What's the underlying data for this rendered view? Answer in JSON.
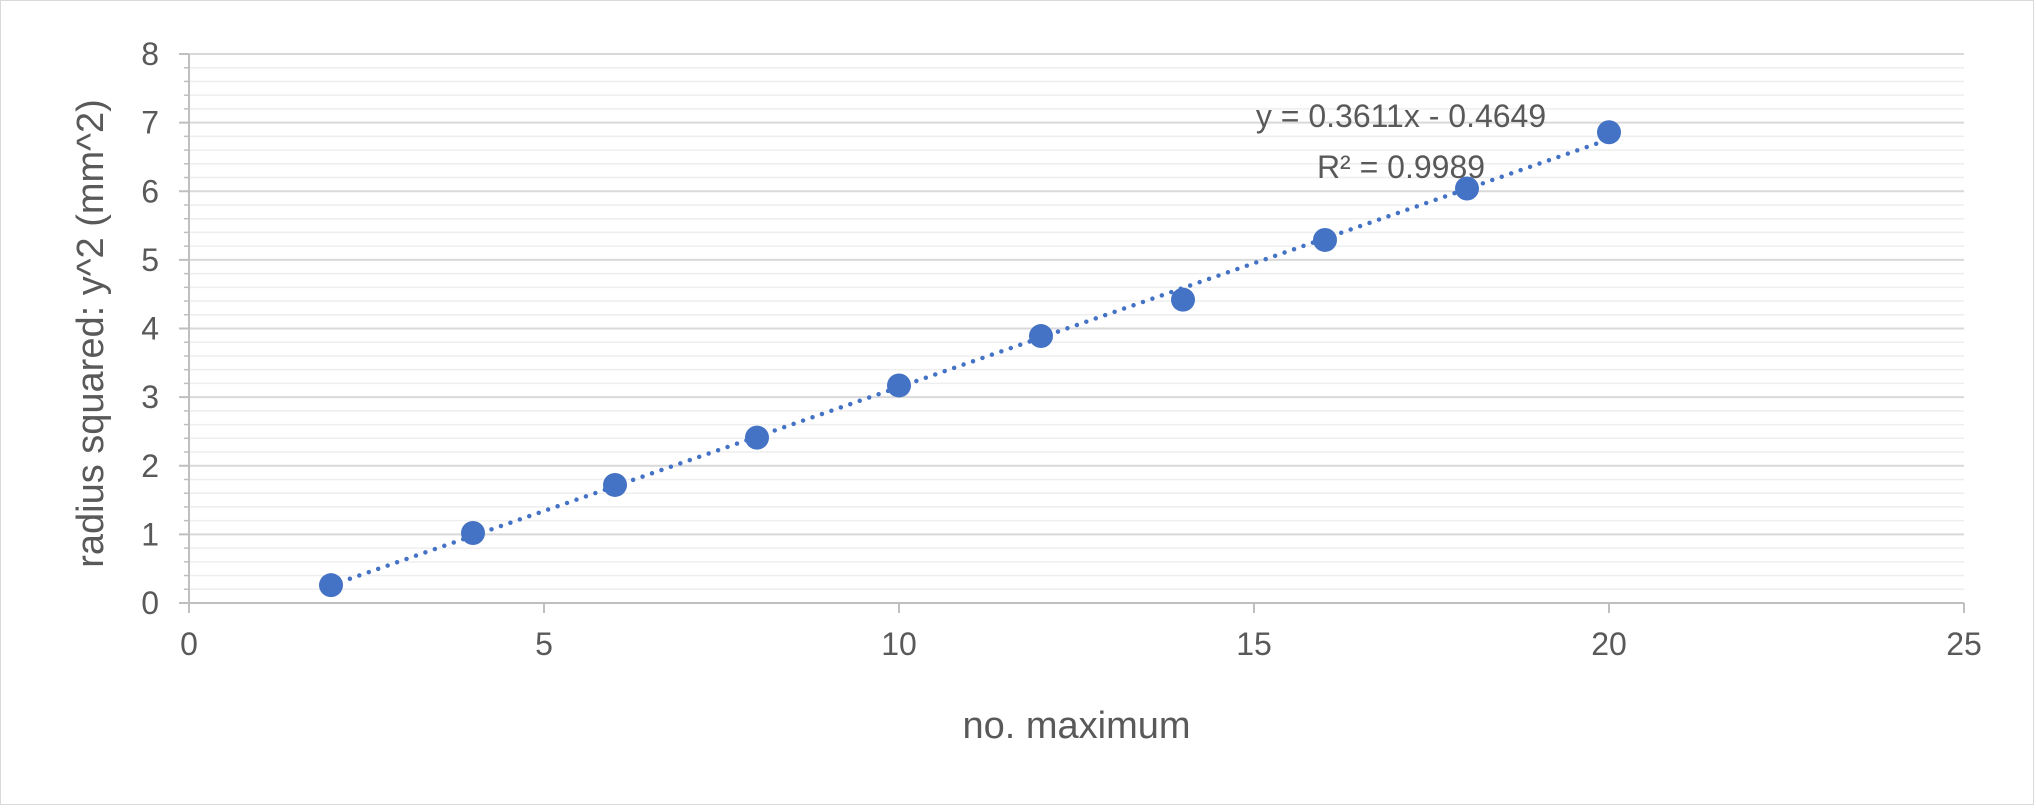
{
  "chart_data": {
    "type": "scatter",
    "title": "",
    "xlabel": "no. maximum",
    "ylabel": "radius squared: y^2 (mm^2)",
    "xlim": [
      0,
      25
    ],
    "ylim": [
      0,
      8
    ],
    "x_ticks": [
      0,
      5,
      10,
      15,
      20,
      25
    ],
    "y_ticks": [
      0,
      1,
      2,
      3,
      4,
      5,
      6,
      7,
      8
    ],
    "grid": {
      "major": true,
      "minor": true,
      "minor_step": 0.2
    },
    "legend": "none",
    "colors": {
      "marker": "#4472c4",
      "trendline": "#4472c4",
      "major_grid": "#d9d9d9",
      "minor_grid": "#eeeeee",
      "axis": "#bfbfbf"
    },
    "series": [
      {
        "x": [
          2,
          4,
          6,
          8,
          10,
          12,
          14,
          16,
          18,
          20
        ],
        "y": [
          0.26,
          1.02,
          1.72,
          2.41,
          3.17,
          3.89,
          4.42,
          5.29,
          6.04,
          6.86
        ]
      }
    ],
    "trendline": {
      "type": "linear",
      "slope": 0.3611,
      "intercept": -0.4649,
      "x_range": [
        2,
        20
      ],
      "style": "dotted",
      "equation_label": "y = 0.3611x - 0.4649",
      "r2_label": "R² = 0.9989"
    }
  }
}
